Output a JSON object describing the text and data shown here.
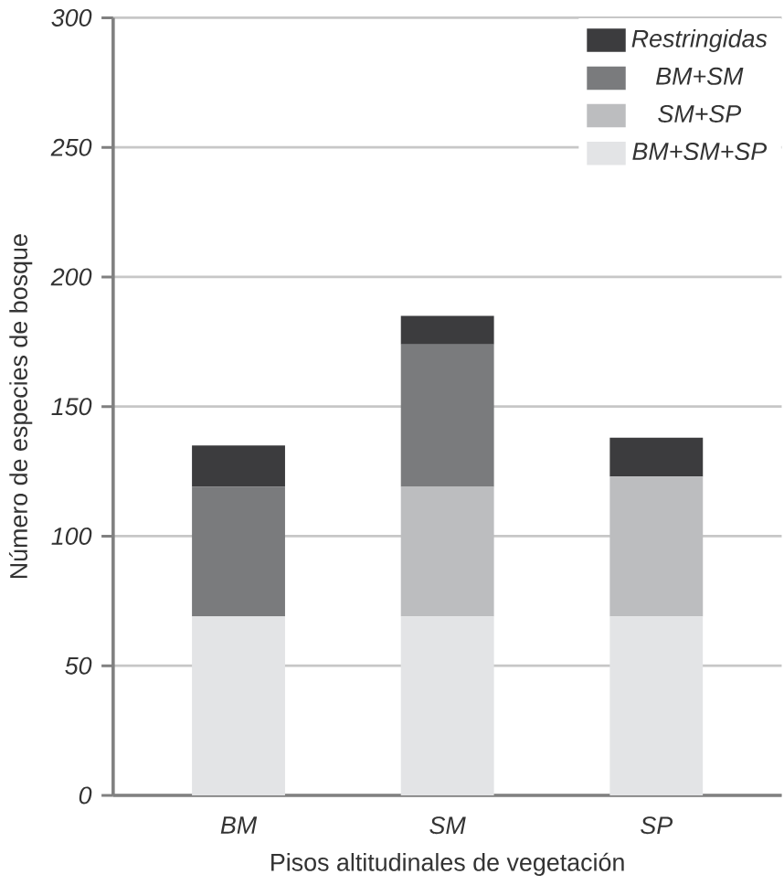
{
  "chart_data": {
    "type": "bar",
    "stacked": true,
    "xlabel": "Pisos altitudinales de vegetación",
    "ylabel": "Número de especies de bosque",
    "categories": [
      "BM",
      "SM",
      "SP"
    ],
    "series": [
      {
        "name": "BM+SM+SP",
        "color": "#e3e4e6",
        "values": [
          69,
          69,
          69
        ]
      },
      {
        "name": "SM+SP",
        "color": "#bcbdbf",
        "values": [
          0,
          50,
          54
        ]
      },
      {
        "name": "BM+SM",
        "color": "#7a7b7d",
        "values": [
          50,
          55,
          0
        ]
      },
      {
        "name": "Restringidas",
        "color": "#3c3c3e",
        "values": [
          16,
          11,
          15
        ]
      }
    ],
    "ylim": [
      0,
      300
    ],
    "yticks": [
      0,
      50,
      100,
      150,
      200,
      250,
      300
    ],
    "grid": "y",
    "legend": "top right"
  }
}
